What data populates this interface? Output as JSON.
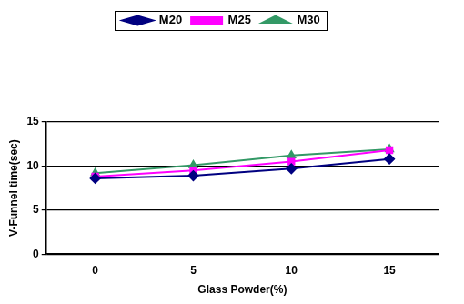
{
  "chart_data": {
    "type": "line",
    "x_label": "Glass Powder(%)",
    "y_label": "V-Funnel time(sec)",
    "categories": [
      "0",
      "5",
      "10",
      "15"
    ],
    "series": [
      {
        "name": "M20",
        "color": "#000080",
        "marker": "diamond",
        "line_style": "solid",
        "values": [
          8.6,
          8.9,
          9.7,
          10.8
        ]
      },
      {
        "name": "M25",
        "color": "#ff00ff",
        "marker": "square",
        "line_style": "solid",
        "values": [
          8.8,
          9.5,
          10.5,
          11.8
        ]
      },
      {
        "name": "M30",
        "color": "#339966",
        "marker": "triangle",
        "line_style": "solid",
        "values": [
          9.2,
          10.1,
          11.2,
          11.9
        ]
      }
    ],
    "ylim": [
      0,
      15
    ],
    "yticks": [
      0,
      5,
      10,
      15
    ],
    "grid": true,
    "legend": "top"
  }
}
